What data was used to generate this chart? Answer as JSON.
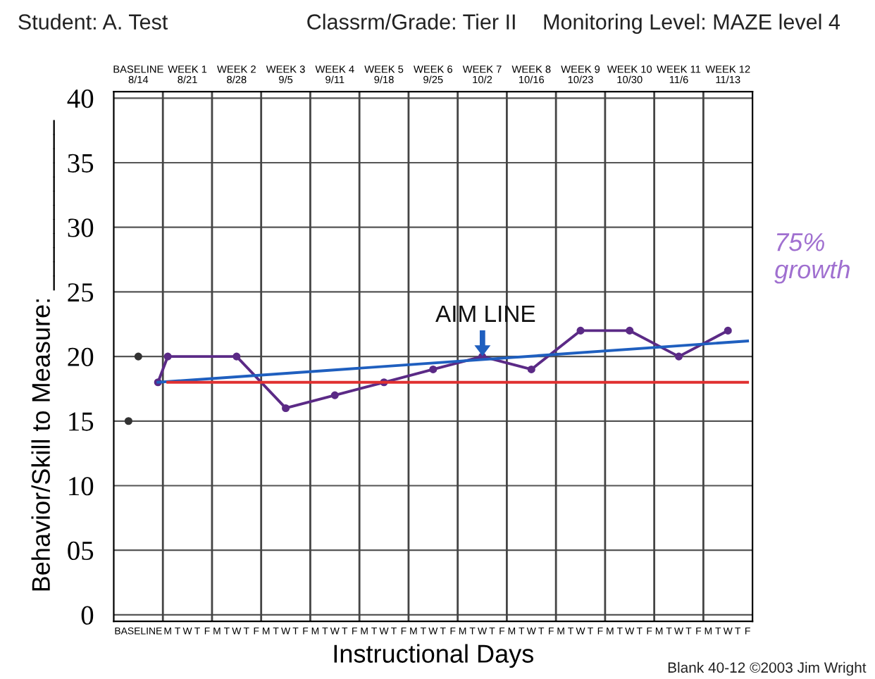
{
  "chart_data": {
    "type": "line",
    "annotations": [
      "Student: A. Test",
      "Classrm/Grade: Tier II",
      "Monitoring Level: MAZE level 4",
      "Blank 40-12 ©2003 Jim Wright",
      "75% growth",
      "AIM LINE",
      "BASELINE\n8/14",
      "WEEK 1\n8/21",
      "WEEK 2\n8/28",
      "WEEK 3\n9/5",
      "WEEK 4\n9/11",
      "WEEK 5\n9/18",
      "WEEK 6\n9/25",
      "WEEK 7\n10/2",
      "WEEK 8\n10/16",
      "WEEK 9\n10/23",
      "WEEK 10\n10/30",
      "WEEK 11\n11/6",
      "WEEK 12\n11/13"
    ],
    "xlabel": "Instructional Days",
    "ylabel": "Behavior/Skill to Measure: ____________",
    "categories": [
      null,
      null,
      "BASELINE",
      null,
      null,
      "M",
      "T",
      "W",
      "T",
      "F",
      "M",
      "T",
      "W",
      "T",
      "F",
      "M",
      "T",
      "W",
      "T",
      "F",
      "M",
      "T",
      "W",
      "T",
      "F",
      "M",
      "T",
      "W",
      "T",
      "F",
      "M",
      "T",
      "W",
      "T",
      "F",
      "M",
      "T",
      "W",
      "T",
      "F",
      "M",
      "T",
      "W",
      "T",
      "F",
      "M",
      "T",
      "W",
      "T",
      "F",
      "M",
      "T",
      "W",
      "T",
      "F",
      "M",
      "T",
      "W",
      "T",
      "F",
      "M",
      "T",
      "W",
      "T",
      "F"
    ],
    "series": [
      {
        "type": "scatter",
        "color": "#333333",
        "marker": "circle",
        "values": [
          null,
          15,
          20,
          null,
          null,
          null,
          null,
          null,
          null,
          null,
          null,
          null,
          null,
          null,
          null,
          null,
          null,
          null,
          null,
          null,
          null,
          null,
          null,
          null,
          null,
          null,
          null,
          null,
          null,
          null,
          null,
          null,
          null,
          null,
          null,
          null,
          null,
          null,
          null,
          null,
          null,
          null,
          null,
          null,
          null,
          null,
          null,
          null,
          null,
          null,
          null,
          null,
          null,
          null,
          null,
          null,
          null,
          null,
          null,
          null,
          null,
          null,
          null,
          null,
          null
        ]
      },
      {
        "color": "#5b2a86",
        "marker": "circle",
        "values": [
          null,
          null,
          null,
          null,
          18,
          20,
          null,
          null,
          null,
          null,
          null,
          null,
          20,
          null,
          null,
          null,
          null,
          16,
          null,
          null,
          null,
          null,
          17,
          null,
          null,
          null,
          null,
          18,
          null,
          null,
          null,
          null,
          19,
          null,
          null,
          null,
          null,
          20,
          null,
          null,
          null,
          null,
          19,
          null,
          null,
          null,
          null,
          22,
          null,
          null,
          null,
          null,
          22,
          null,
          null,
          null,
          null,
          20,
          null,
          null,
          null,
          null,
          22,
          null,
          null
        ]
      },
      {
        "color": "#1f5fbf",
        "marker": "none",
        "values": [
          null,
          null,
          null,
          null,
          18,
          null,
          null,
          null,
          null,
          null,
          null,
          null,
          null,
          null,
          null,
          null,
          null,
          null,
          null,
          null,
          null,
          null,
          null,
          null,
          null,
          null,
          null,
          null,
          null,
          null,
          null,
          null,
          null,
          null,
          null,
          null,
          null,
          null,
          null,
          null,
          null,
          null,
          null,
          null,
          null,
          null,
          null,
          null,
          null,
          null,
          null,
          null,
          null,
          null,
          null,
          null,
          null,
          null,
          null,
          null,
          null,
          null,
          null,
          null,
          21.2
        ]
      },
      {
        "color": "#e03030",
        "marker": "none",
        "values": [
          null,
          null,
          null,
          null,
          null,
          18,
          null,
          null,
          null,
          null,
          null,
          null,
          null,
          null,
          null,
          null,
          null,
          null,
          null,
          null,
          null,
          null,
          null,
          null,
          null,
          null,
          null,
          null,
          null,
          null,
          null,
          null,
          null,
          null,
          null,
          null,
          null,
          null,
          null,
          null,
          null,
          null,
          null,
          null,
          null,
          null,
          null,
          null,
          null,
          null,
          null,
          null,
          null,
          null,
          null,
          null,
          null,
          null,
          null,
          null,
          null,
          null,
          null,
          null,
          18
        ]
      }
    ],
    "ylim": [
      -0.5,
      40.5
    ],
    "yticks": [
      0,
      {
        "value": 5,
        "label": "05"
      },
      10,
      15,
      20,
      25,
      30,
      35,
      40
    ],
    "grid": true
  }
}
